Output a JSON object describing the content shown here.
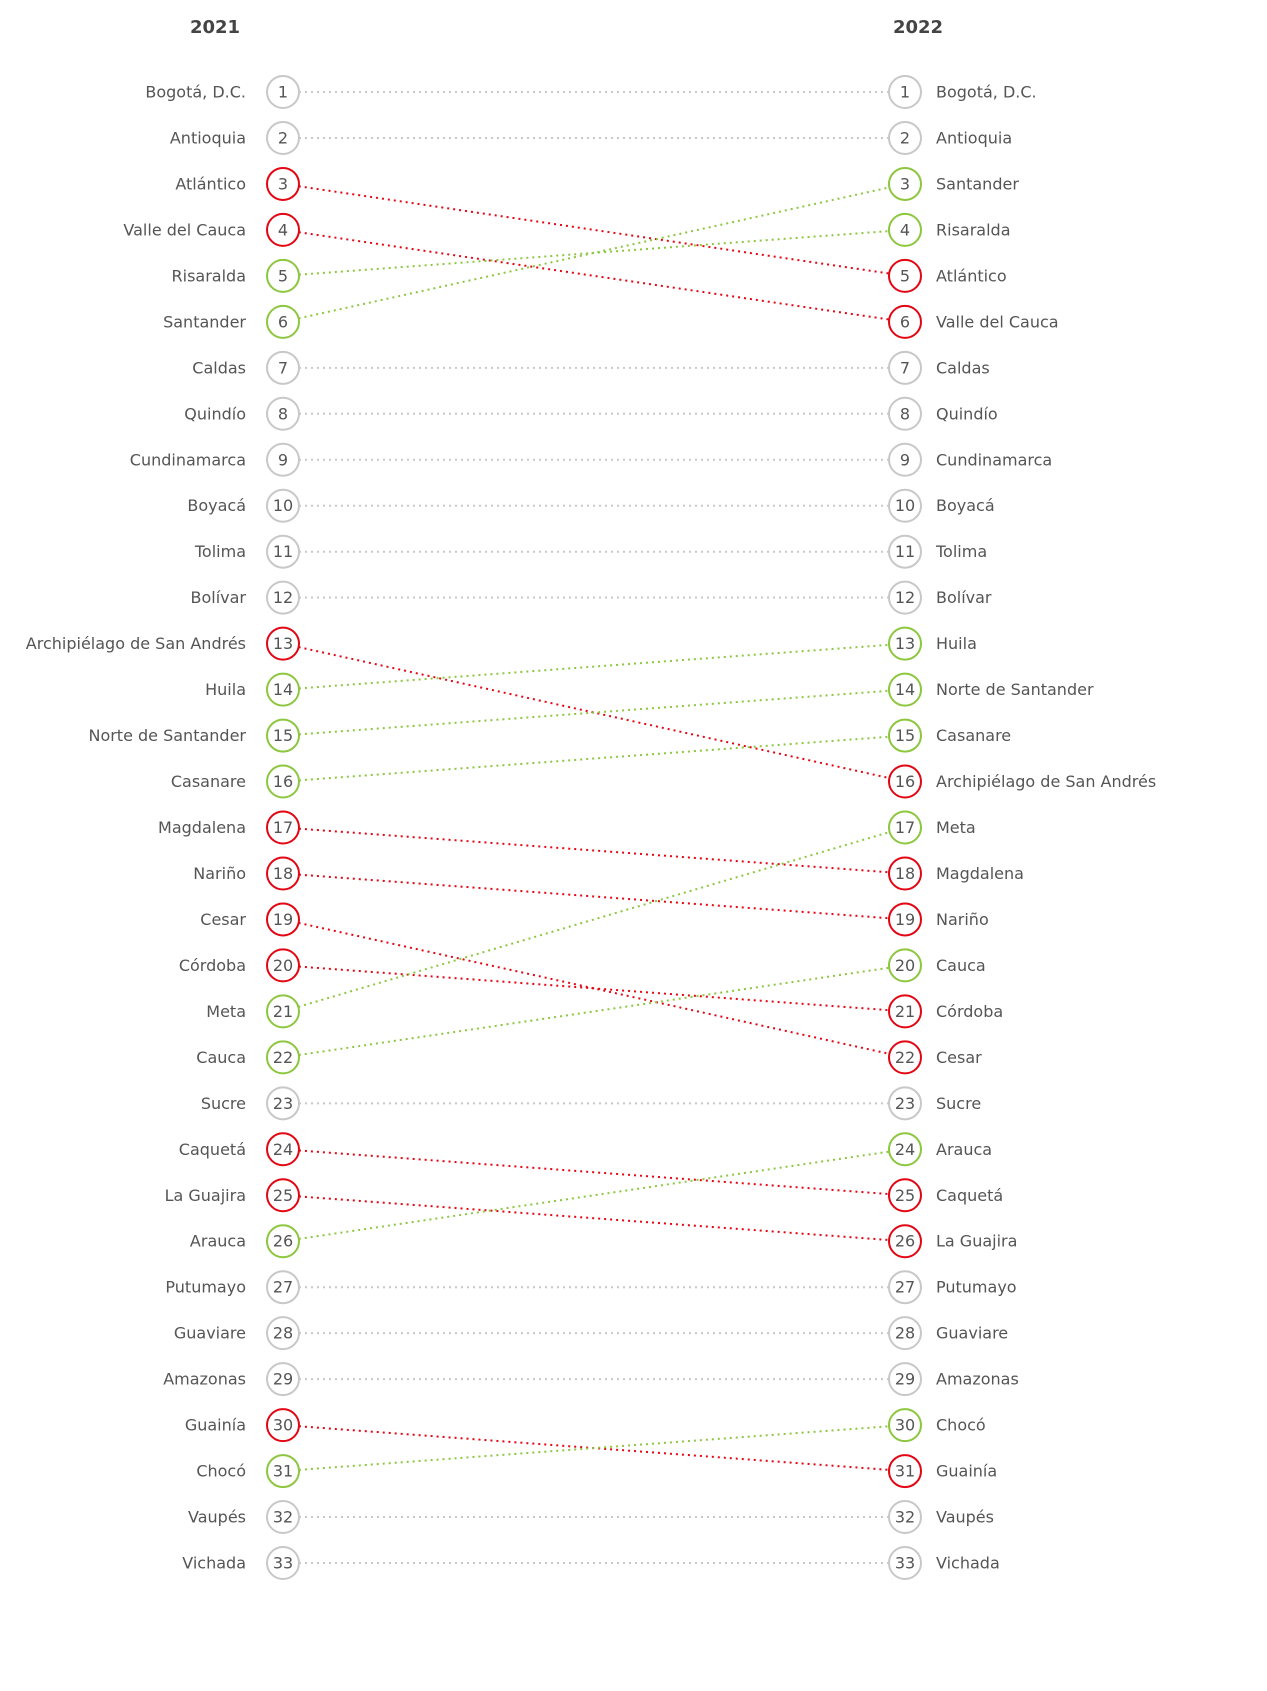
{
  "chart_data": {
    "type": "slope",
    "x": [
      "2021",
      "2022"
    ],
    "ylim": [
      1,
      33
    ],
    "series": [
      {
        "name": "Bogotá, D.C.",
        "color": "#c8c8c8",
        "values": [
          1,
          1
        ]
      },
      {
        "name": "Antioquia",
        "color": "#c8c8c8",
        "values": [
          2,
          2
        ]
      },
      {
        "name": "Atlántico",
        "color": "#e30613",
        "values": [
          3,
          5
        ]
      },
      {
        "name": "Valle del Cauca",
        "color": "#e30613",
        "values": [
          4,
          6
        ]
      },
      {
        "name": "Risaralda",
        "color": "#8dc63f",
        "values": [
          5,
          4
        ]
      },
      {
        "name": "Santander",
        "color": "#8dc63f",
        "values": [
          6,
          3
        ]
      },
      {
        "name": "Caldas",
        "color": "#c8c8c8",
        "values": [
          7,
          7
        ]
      },
      {
        "name": "Quindío",
        "color": "#c8c8c8",
        "values": [
          8,
          8
        ]
      },
      {
        "name": "Cundinamarca",
        "color": "#c8c8c8",
        "values": [
          9,
          9
        ]
      },
      {
        "name": "Boyacá",
        "color": "#c8c8c8",
        "values": [
          10,
          10
        ]
      },
      {
        "name": "Tolima",
        "color": "#c8c8c8",
        "values": [
          11,
          11
        ]
      },
      {
        "name": "Bolívar",
        "color": "#c8c8c8",
        "values": [
          12,
          12
        ]
      },
      {
        "name": "Archipiélago de San Andrés",
        "color": "#e30613",
        "values": [
          13,
          16
        ]
      },
      {
        "name": "Huila",
        "color": "#8dc63f",
        "values": [
          14,
          13
        ]
      },
      {
        "name": "Norte de Santander",
        "color": "#8dc63f",
        "values": [
          15,
          14
        ]
      },
      {
        "name": "Casanare",
        "color": "#8dc63f",
        "values": [
          16,
          15
        ]
      },
      {
        "name": "Magdalena",
        "color": "#e30613",
        "values": [
          17,
          18
        ]
      },
      {
        "name": "Nariño",
        "color": "#e30613",
        "values": [
          18,
          19
        ]
      },
      {
        "name": "Cesar",
        "color": "#e30613",
        "values": [
          19,
          22
        ]
      },
      {
        "name": "Córdoba",
        "color": "#e30613",
        "values": [
          20,
          21
        ]
      },
      {
        "name": "Meta",
        "color": "#8dc63f",
        "values": [
          21,
          17
        ]
      },
      {
        "name": "Cauca",
        "color": "#8dc63f",
        "values": [
          22,
          20
        ]
      },
      {
        "name": "Sucre",
        "color": "#c8c8c8",
        "values": [
          23,
          23
        ]
      },
      {
        "name": "Caquetá",
        "color": "#e30613",
        "values": [
          24,
          25
        ]
      },
      {
        "name": "La Guajira",
        "color": "#e30613",
        "values": [
          25,
          26
        ]
      },
      {
        "name": "Arauca",
        "color": "#8dc63f",
        "values": [
          26,
          24
        ]
      },
      {
        "name": "Putumayo",
        "color": "#c8c8c8",
        "values": [
          27,
          27
        ]
      },
      {
        "name": "Guaviare",
        "color": "#c8c8c8",
        "values": [
          28,
          28
        ]
      },
      {
        "name": "Amazonas",
        "color": "#c8c8c8",
        "values": [
          29,
          29
        ]
      },
      {
        "name": "Guainía",
        "color": "#e30613",
        "values": [
          30,
          31
        ]
      },
      {
        "name": "Chocó",
        "color": "#8dc63f",
        "values": [
          31,
          30
        ]
      },
      {
        "name": "Vaupés",
        "color": "#c8c8c8",
        "values": [
          32,
          32
        ]
      },
      {
        "name": "Vichada",
        "color": "#c8c8c8",
        "values": [
          33,
          33
        ]
      }
    ]
  }
}
